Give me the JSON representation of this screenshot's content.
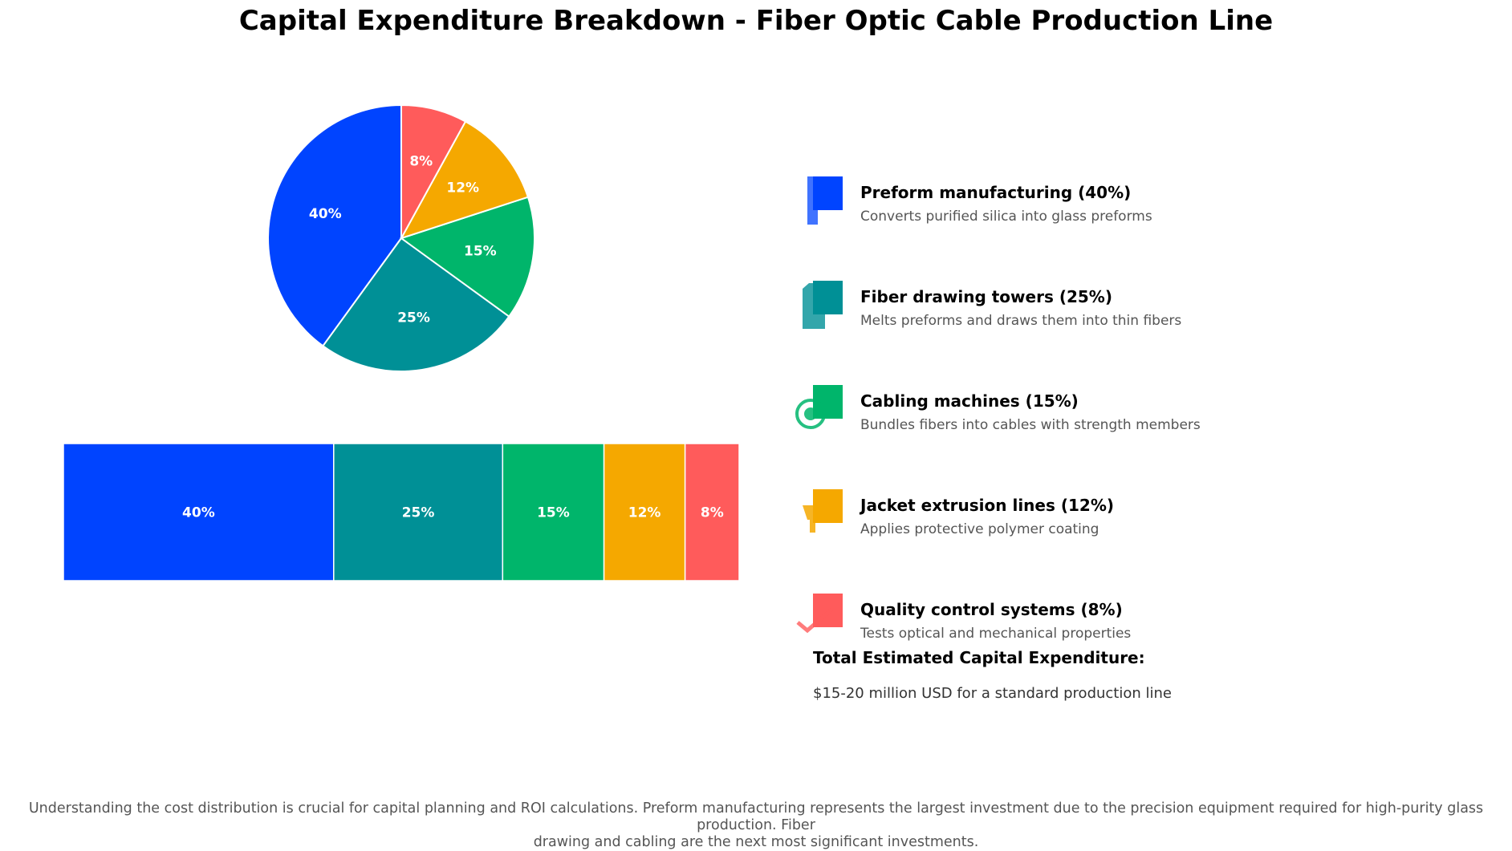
{
  "title": "Capital Expenditure Breakdown - Fiber Optic Cable Production Line",
  "chart_data": {
    "type": "pie",
    "title": "Capital Expenditure Breakdown - Fiber Optic Cable Production Line",
    "categories": [
      "Preform manufacturing",
      "Fiber drawing towers",
      "Cabling machines",
      "Jacket extrusion lines",
      "Quality control systems"
    ],
    "values": [
      40,
      25,
      15,
      12,
      8
    ],
    "unit": "%",
    "colors": [
      "#0044ff",
      "#009096",
      "#00b56b",
      "#f5a800",
      "#ff5b5b"
    ],
    "bar_values": [
      40,
      25,
      15,
      12,
      8
    ]
  },
  "legend": {
    "items": [
      {
        "label": "Preform manufacturing (40%)",
        "description": "Converts purified silica into glass preforms",
        "icon": "preform-icon",
        "color": "#0044ff"
      },
      {
        "label": "Fiber drawing towers (25%)",
        "description": "Melts preforms and draws them into thin fibers",
        "icon": "tower-icon",
        "color": "#009096"
      },
      {
        "label": "Cabling machines (15%)",
        "description": "Bundles fibers into cables with strength members",
        "icon": "cable-reel-icon",
        "color": "#00b56b"
      },
      {
        "label": "Jacket extrusion lines (12%)",
        "description": "Applies protective polymer coating",
        "icon": "extruder-icon",
        "color": "#f5a800"
      },
      {
        "label": "Quality control systems (8%)",
        "description": "Tests optical and mechanical properties",
        "icon": "checkmark-icon",
        "color": "#ff5b5b"
      }
    ]
  },
  "total": {
    "heading": "Total Estimated Capital Expenditure:",
    "value": "$15-20 million USD for a standard production line"
  },
  "footer": {
    "line1": "Understanding the cost distribution is crucial for capital planning and ROI calculations. Preform manufacturing represents the largest investment due to the precision equipment required for high-purity glass production. Fiber",
    "line2": "drawing and cabling are the next most significant investments."
  }
}
